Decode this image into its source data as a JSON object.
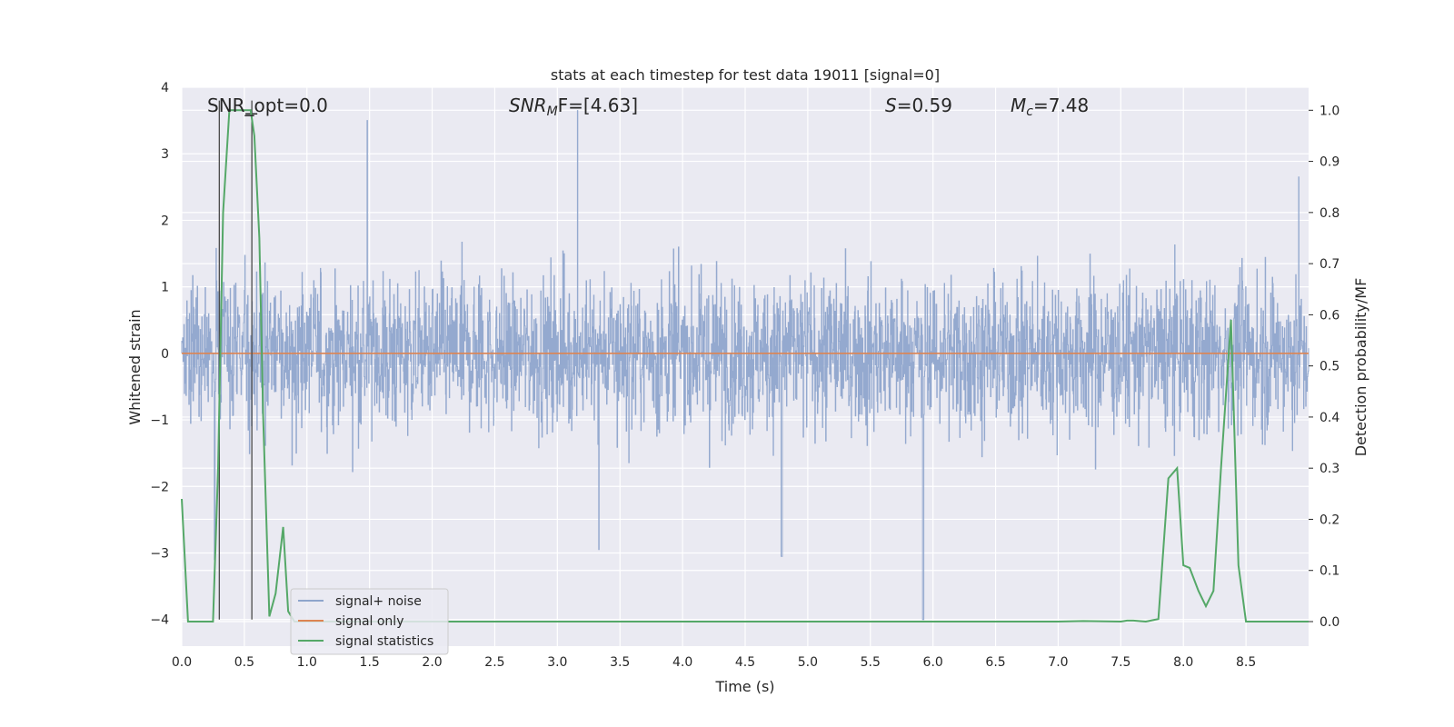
{
  "chart_data": {
    "type": "line",
    "title": "stats at each timestep for test data 19011 [signal=0]",
    "xlabel": "Time (s)",
    "ylabel": "Whitened strain",
    "y2label": "Detection probability/MF",
    "xlim": [
      0,
      9.0
    ],
    "ylim": [
      -4.4,
      4.0
    ],
    "y2lim": [
      -0.048,
      1.045
    ],
    "x_ticks": [
      "0.0",
      "0.5",
      "1.0",
      "1.5",
      "2.0",
      "2.5",
      "3.0",
      "3.5",
      "4.0",
      "4.5",
      "5.0",
      "5.5",
      "6.0",
      "6.5",
      "7.0",
      "7.5",
      "8.0",
      "8.5"
    ],
    "y_ticks": [
      "4",
      "3",
      "2",
      "1",
      "0",
      "−1",
      "−2",
      "−3",
      "−4"
    ],
    "y2_ticks": [
      "1.0",
      "0.9",
      "0.8",
      "0.7",
      "0.6",
      "0.5",
      "0.4",
      "0.3",
      "0.2",
      "0.1",
      "0.0"
    ],
    "grid": true,
    "legend_position": "lower-left",
    "annotations": {
      "snr_opt": "SNR_opt=0.0",
      "snr_mf_main": "SNR",
      "snr_mf_sub": "M",
      "snr_mf_rest": "F=[4.63]",
      "s_main": "S",
      "s_rest": "=0.59",
      "mc_main": "M",
      "mc_sub": "c",
      "mc_rest": "=7.48"
    },
    "vertical_markers_x": [
      0.3,
      0.56
    ],
    "series": [
      {
        "name": "signal+ noise",
        "color": "#8fa5cc",
        "envelope_peaks": [
          {
            "x": 1.48,
            "y": 3.5
          },
          {
            "x": 3.16,
            "y": 3.65
          },
          {
            "x": 3.33,
            "y": -2.95
          },
          {
            "x": 4.79,
            "y": -3.05
          },
          {
            "x": 5.92,
            "y": -4.0
          },
          {
            "x": 0.26,
            "y": -3.1
          },
          {
            "x": 8.92,
            "y": 2.65
          }
        ]
      },
      {
        "name": "signal only",
        "color": "#dd8452",
        "x": [
          0,
          9.0
        ],
        "y": [
          0,
          0
        ]
      },
      {
        "name": "signal statistics",
        "color": "#55a868",
        "x": [
          0,
          0.05,
          0.1,
          0.15,
          0.25,
          0.29,
          0.33,
          0.38,
          0.41,
          0.45,
          0.5,
          0.55,
          0.58,
          0.62,
          0.65,
          0.7,
          0.75,
          0.81,
          0.85,
          0.9,
          1.0,
          2.0,
          3.0,
          4.0,
          5.0,
          6.0,
          7.0,
          7.2,
          7.5,
          7.55,
          7.6,
          7.7,
          7.8,
          7.88,
          7.95,
          8.0,
          8.05,
          8.12,
          8.18,
          8.24,
          8.3,
          8.38,
          8.44,
          8.5,
          8.6,
          9.0
        ],
        "y": [
          0.24,
          0.0,
          0.0,
          0.0,
          0.0,
          0.3,
          0.8,
          1.0,
          1.0,
          1.0,
          1.0,
          1.0,
          0.95,
          0.75,
          0.4,
          0.01,
          0.055,
          0.185,
          0.02,
          0.0,
          0.0,
          0.0,
          0.0,
          0.0,
          0.0,
          0.0,
          0.0,
          0.001,
          0.0,
          0.002,
          0.002,
          0.0,
          0.005,
          0.28,
          0.3,
          0.11,
          0.105,
          0.06,
          0.03,
          0.06,
          0.3,
          0.59,
          0.11,
          0.0,
          0.0,
          0.0
        ]
      }
    ]
  }
}
